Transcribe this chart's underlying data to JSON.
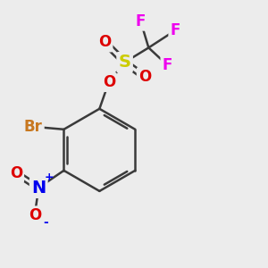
{
  "bg_color": "#ececec",
  "bond_color": "#3a3a3a",
  "bond_width": 1.8,
  "atom_colors": {
    "Br": "#c87820",
    "O": "#dd0000",
    "S": "#cccc00",
    "F": "#ee00ee",
    "N": "#0000ee",
    "NO_O": "#dd0000"
  },
  "font_sizes": {
    "Br": 12,
    "O": 12,
    "S": 14,
    "F": 12,
    "N": 14,
    "plus": 9,
    "minus": 10
  }
}
